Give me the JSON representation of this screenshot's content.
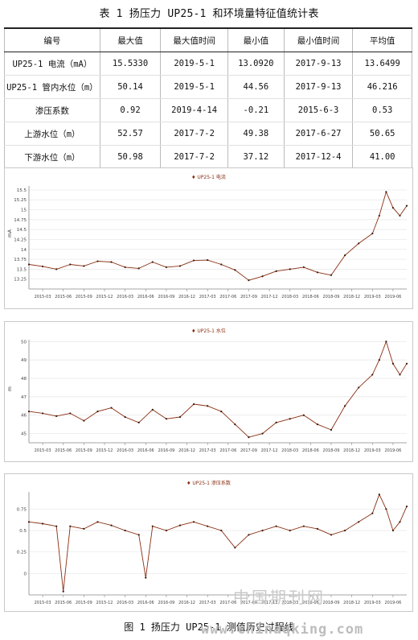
{
  "table": {
    "title": "表 1    扬压力 UP25-1 和环境量特征值统计表",
    "headers": [
      "编号",
      "最大值",
      "最大值时间",
      "最小值",
      "最小值时间",
      "平均值"
    ],
    "rows": [
      [
        "UP25-1 电流（mA）",
        "15.5330",
        "2019-5-1",
        "13.0920",
        "2017-9-13",
        "13.6499"
      ],
      [
        "UP25-1 管内水位（m）",
        "50.14",
        "2019-5-1",
        "44.56",
        "2017-9-13",
        "46.216"
      ],
      [
        "渗压系数",
        "0.92",
        "2019-4-14",
        "-0.21",
        "2015-6-3",
        "0.53"
      ],
      [
        "上游水位（m）",
        "52.57",
        "2017-7-2",
        "49.38",
        "2017-6-27",
        "50.65"
      ],
      [
        "下游水位（m）",
        "50.98",
        "2017-7-2",
        "37.12",
        "2017-12-4",
        "41.00"
      ]
    ]
  },
  "figure_caption": "图 1    扬压力 UP25-1 测值历史过程线",
  "watermark": "中国期刊网",
  "watermark_url": "www.chinaqking.com",
  "colors": {
    "line": "#8b2e12",
    "marker": "#3a1a0a",
    "grid": "#e6e6e6",
    "axis": "#888888"
  },
  "chart_data": [
    {
      "type": "line",
      "legend": "UP25-1 电流",
      "ylabel": "mA",
      "ylim": [
        13.0,
        15.6
      ],
      "yticks": [
        13.25,
        13.5,
        13.75,
        14.0,
        14.25,
        14.5,
        14.75,
        15.0,
        15.25,
        15.5
      ],
      "xticks": [
        "2015-03",
        "2015-06",
        "2015-09",
        "2015-12",
        "2016-03",
        "2016-06",
        "2016-09",
        "2016-12",
        "2017-03",
        "2017-06",
        "2017-09",
        "2017-12",
        "2018-03",
        "2018-06",
        "2018-09",
        "2018-12",
        "2019-03",
        "2019-06"
      ],
      "x": [
        "2015-01",
        "2015-03",
        "2015-05",
        "2015-07",
        "2015-09",
        "2015-11",
        "2016-01",
        "2016-03",
        "2016-05",
        "2016-07",
        "2016-09",
        "2016-11",
        "2017-01",
        "2017-03",
        "2017-05",
        "2017-07",
        "2017-09",
        "2017-11",
        "2018-01",
        "2018-03",
        "2018-05",
        "2018-07",
        "2018-09",
        "2018-11",
        "2019-01",
        "2019-03",
        "2019-04",
        "2019-05",
        "2019-06",
        "2019-07",
        "2019-08"
      ],
      "values": [
        13.62,
        13.57,
        13.5,
        13.62,
        13.58,
        13.7,
        13.68,
        13.55,
        13.52,
        13.68,
        13.55,
        13.58,
        13.72,
        13.73,
        13.62,
        13.48,
        13.22,
        13.32,
        13.45,
        13.5,
        13.55,
        13.42,
        13.35,
        13.85,
        14.15,
        14.4,
        14.85,
        15.45,
        15.05,
        14.85,
        15.1
      ]
    },
    {
      "type": "line",
      "legend": "UP25-1 水位",
      "ylabel": "m",
      "ylim": [
        44.5,
        50.1
      ],
      "yticks": [
        45,
        46,
        47,
        48,
        49,
        50
      ],
      "xticks": [
        "2015-03",
        "2015-06",
        "2015-09",
        "2015-12",
        "2016-03",
        "2016-06",
        "2016-09",
        "2016-12",
        "2017-03",
        "2017-06",
        "2017-09",
        "2017-12",
        "2018-03",
        "2018-06",
        "2018-09",
        "2018-12",
        "2019-03",
        "2019-06"
      ],
      "x": [
        "2015-01",
        "2015-03",
        "2015-05",
        "2015-07",
        "2015-09",
        "2015-11",
        "2016-01",
        "2016-03",
        "2016-05",
        "2016-07",
        "2016-09",
        "2016-11",
        "2017-01",
        "2017-03",
        "2017-05",
        "2017-07",
        "2017-09",
        "2017-11",
        "2018-01",
        "2018-03",
        "2018-05",
        "2018-07",
        "2018-09",
        "2018-11",
        "2019-01",
        "2019-03",
        "2019-04",
        "2019-05",
        "2019-06",
        "2019-07",
        "2019-08"
      ],
      "values": [
        46.2,
        46.1,
        45.95,
        46.1,
        45.7,
        46.2,
        46.4,
        45.9,
        45.6,
        46.3,
        45.8,
        45.9,
        46.6,
        46.5,
        46.2,
        45.5,
        44.8,
        45.0,
        45.6,
        45.8,
        46.0,
        45.5,
        45.2,
        46.5,
        47.5,
        48.2,
        49.0,
        50.0,
        48.8,
        48.2,
        48.8
      ]
    },
    {
      "type": "line",
      "legend": "UP25-1 渗压系数",
      "ylabel": "",
      "ylim": [
        -0.25,
        0.95
      ],
      "yticks": [
        0.0,
        0.25,
        0.5,
        0.75
      ],
      "xticks": [
        "2015-03",
        "2015-06",
        "2015-09",
        "2015-12",
        "2016-03",
        "2016-06",
        "2016-09",
        "2016-12",
        "2017-03",
        "2017-06",
        "2017-09",
        "2017-12",
        "2018-03",
        "2018-06",
        "2018-09",
        "2018-12",
        "2019-03",
        "2019-06"
      ],
      "x": [
        "2015-01",
        "2015-03",
        "2015-05",
        "2015-06",
        "2015-07",
        "2015-09",
        "2015-11",
        "2016-01",
        "2016-03",
        "2016-05",
        "2016-06",
        "2016-07",
        "2016-09",
        "2016-11",
        "2017-01",
        "2017-03",
        "2017-05",
        "2017-07",
        "2017-09",
        "2017-11",
        "2018-01",
        "2018-03",
        "2018-05",
        "2018-07",
        "2018-09",
        "2018-11",
        "2019-01",
        "2019-03",
        "2019-04",
        "2019-05",
        "2019-06",
        "2019-07",
        "2019-08"
      ],
      "values": [
        0.6,
        0.58,
        0.55,
        -0.21,
        0.55,
        0.52,
        0.6,
        0.56,
        0.5,
        0.45,
        -0.05,
        0.55,
        0.5,
        0.56,
        0.6,
        0.55,
        0.5,
        0.3,
        0.45,
        0.5,
        0.55,
        0.5,
        0.55,
        0.52,
        0.45,
        0.5,
        0.6,
        0.7,
        0.92,
        0.75,
        0.5,
        0.6,
        0.78
      ]
    }
  ]
}
